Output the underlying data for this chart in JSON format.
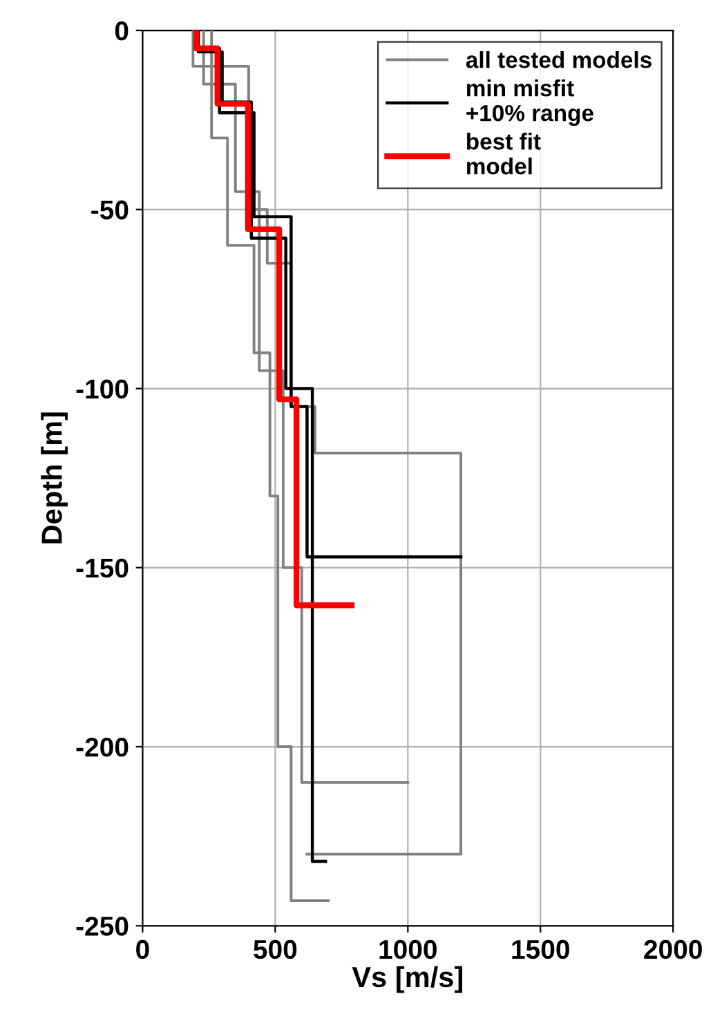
{
  "chart_data": {
    "type": "line",
    "xlabel": "Vs [m/s]",
    "ylabel": "Depth [m]",
    "xlim": [
      0,
      2000
    ],
    "xticks": [
      0,
      500,
      1000,
      1500,
      2000
    ],
    "ylim": [
      -250,
      0
    ],
    "yticks": [
      0,
      -50,
      -100,
      -150,
      -200,
      -250
    ],
    "grid": true,
    "legend": "top right",
    "marker": "none",
    "line_style": "solid",
    "series": [
      {
        "name": "all tested models",
        "color": "#808080",
        "x": [
          190,
          190,
          260,
          260,
          320,
          320,
          420,
          420,
          480,
          480,
          510,
          510,
          560,
          560,
          700
        ],
        "values": [
          0,
          -10,
          -10,
          -30,
          -30,
          -60,
          -60,
          -90,
          -90,
          -130,
          -130,
          -200,
          -200,
          -243,
          -243
        ]
      },
      {
        "color": "#808080",
        "x": [
          260,
          260,
          400,
          400,
          470,
          470,
          560,
          560,
          650,
          650,
          1200,
          1200,
          620
        ],
        "values": [
          0,
          -10,
          -10,
          -50,
          -50,
          -65,
          -65,
          -105,
          -105,
          -118,
          -118,
          -230,
          -230
        ]
      },
      {
        "color": "#808080",
        "x": [
          230,
          230,
          350,
          350,
          440,
          440,
          530,
          530,
          600,
          600,
          1000
        ],
        "values": [
          0,
          -15,
          -15,
          -45,
          -45,
          -95,
          -95,
          -150,
          -150,
          -210,
          -210
        ]
      },
      {
        "name": "min misfit\n+10% range",
        "color": "#000000",
        "x": [
          200,
          200,
          290,
          290,
          420,
          420,
          560,
          560,
          620,
          620,
          1200
        ],
        "values": [
          0,
          -5,
          -5,
          -23,
          -23,
          -52,
          -52,
          -105,
          -105,
          -147,
          -147
        ]
      },
      {
        "color": "#000000",
        "x": [
          210,
          210,
          300,
          300,
          410,
          410,
          540,
          540,
          640,
          640,
          690
        ],
        "values": [
          0,
          -6,
          -6,
          -20,
          -20,
          -58,
          -58,
          -100,
          -100,
          -232,
          -232
        ]
      },
      {
        "name": "best fit\nmodel",
        "color": "#ff0000",
        "x": [
          202,
          202,
          282,
          282,
          397,
          397,
          515,
          515,
          580,
          580,
          788
        ],
        "values": [
          0,
          -5,
          -5,
          -20.5,
          -20.5,
          -55.5,
          -55.5,
          -103,
          -103,
          -160.5,
          -160.5
        ]
      }
    ]
  }
}
